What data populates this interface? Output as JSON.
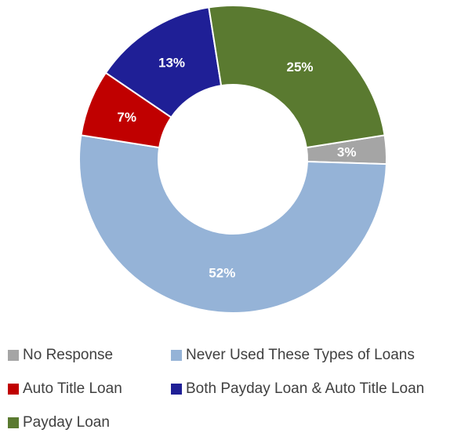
{
  "chart_data": {
    "type": "pie",
    "donut": true,
    "title": "",
    "legend_position": "bottom",
    "slices": [
      {
        "name": "No Response",
        "value": 3,
        "label": "3%",
        "color": "#a5a5a5"
      },
      {
        "name": "Never Used These Types of Loans",
        "value": 52,
        "label": "52%",
        "color": "#95b3d7"
      },
      {
        "name": "Auto Title Loan",
        "value": 7,
        "label": "7%",
        "color": "#c00000"
      },
      {
        "name": "Both Payday Loan & Auto Title Loan",
        "value": 13,
        "label": "13%",
        "color": "#1f1f96"
      },
      {
        "name": "Payday Loan",
        "value": 25,
        "label": "25%",
        "color": "#5a7a30"
      }
    ]
  }
}
